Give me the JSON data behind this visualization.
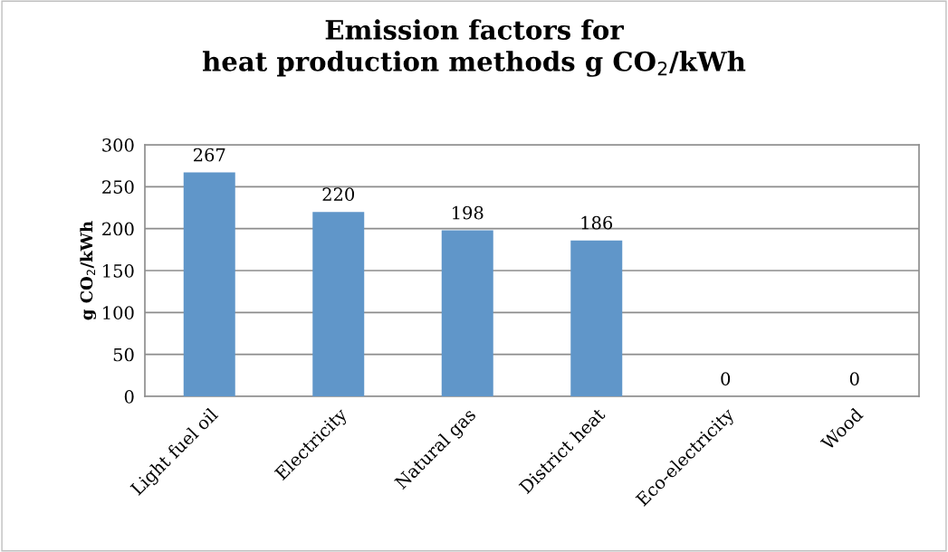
{
  "chart_data": {
    "type": "bar",
    "title": "Emission factors for\nheat production methods g CO$_{2}$/kWh",
    "ylabel": "g CO$_{2}$/kWh",
    "categories": [
      "Light fuel oil",
      "Electricity",
      "Natural gas",
      "District heat",
      "Eco-electricity",
      "Wood"
    ],
    "values": [
      267,
      220,
      198,
      186,
      0,
      0
    ],
    "color": "#6096c9",
    "ylim": [
      0,
      300
    ],
    "yticks": [
      0,
      50,
      100,
      150,
      200,
      250,
      300
    ],
    "grid": "y",
    "data_labels": true
  }
}
